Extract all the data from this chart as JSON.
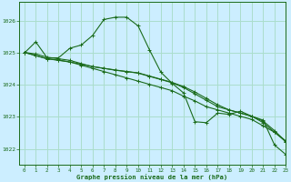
{
  "title": "Graphe pression niveau de la mer (hPa)",
  "background_color": "#cceeff",
  "plot_bg_color": "#cceeff",
  "grid_color": "#aaddcc",
  "line_color": "#1a6b1a",
  "marker": "+",
  "xlim": [
    -0.5,
    23
  ],
  "ylim": [
    1021.5,
    1026.6
  ],
  "yticks": [
    1022,
    1023,
    1024,
    1025,
    1026
  ],
  "xticks": [
    0,
    1,
    2,
    3,
    4,
    5,
    6,
    7,
    8,
    9,
    10,
    11,
    12,
    13,
    14,
    15,
    16,
    17,
    18,
    19,
    20,
    21,
    22,
    23
  ],
  "series": [
    [
      1025.0,
      1025.35,
      1024.85,
      1024.85,
      1025.15,
      1025.25,
      1025.55,
      1026.05,
      1026.12,
      1026.12,
      1025.85,
      1025.1,
      1024.4,
      1024.05,
      1023.75,
      1022.85,
      1022.82,
      1023.12,
      1023.08,
      1023.18,
      1023.02,
      1022.9,
      1022.12,
      1021.82
    ],
    [
      1025.02,
      1024.92,
      1024.82,
      1024.78,
      1024.72,
      1024.62,
      1024.52,
      1024.42,
      1024.32,
      1024.22,
      1024.12,
      1024.02,
      1023.92,
      1023.82,
      1023.65,
      1023.5,
      1023.32,
      1023.22,
      1023.12,
      1023.02,
      1022.92,
      1022.72,
      1022.52,
      1022.25
    ],
    [
      1025.02,
      1024.92,
      1024.82,
      1024.77,
      1024.72,
      1024.65,
      1024.58,
      1024.52,
      1024.46,
      1024.42,
      1024.38,
      1024.28,
      1024.18,
      1024.08,
      1023.95,
      1023.78,
      1023.58,
      1023.38,
      1023.22,
      1023.12,
      1023.02,
      1022.82,
      1022.52,
      1022.22
    ],
    [
      1025.02,
      1024.97,
      1024.87,
      1024.82,
      1024.77,
      1024.67,
      1024.57,
      1024.52,
      1024.47,
      1024.42,
      1024.37,
      1024.27,
      1024.17,
      1024.07,
      1023.92,
      1023.72,
      1023.52,
      1023.32,
      1023.22,
      1023.12,
      1023.02,
      1022.87,
      1022.57,
      1022.22
    ]
  ]
}
